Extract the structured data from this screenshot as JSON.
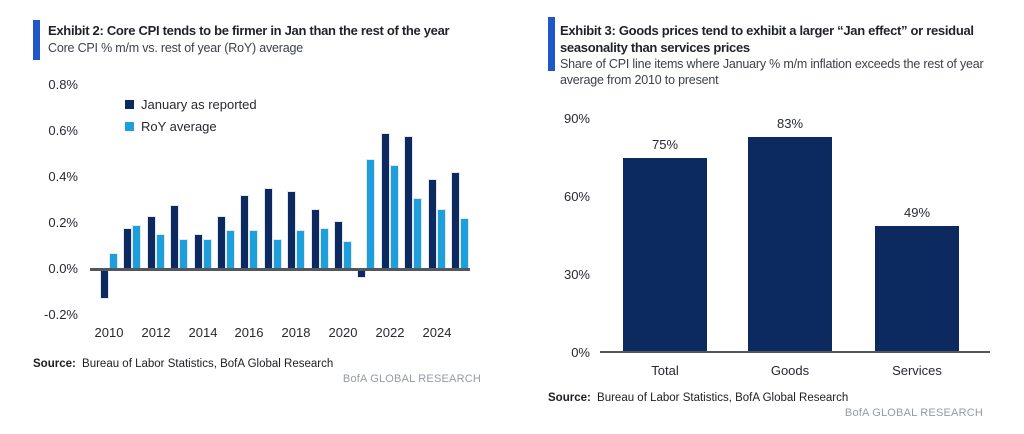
{
  "panels": {
    "left": {
      "title": "Exhibit 2: Core CPI tends to be firmer in Jan than the rest of the year",
      "subtitle": "Core CPI % m/m vs. rest of year (RoY) average",
      "source_label": "Source:",
      "source_text": "Bureau of Labor Statistics, BofA Global Research",
      "watermark": "BofA GLOBAL RESEARCH"
    },
    "right": {
      "title": "Exhibit 3: Goods prices tend to exhibit a larger “Jan effect” or residual seasonality than services prices",
      "subtitle": "Share of CPI line items where January % m/m inflation exceeds the rest of year average from 2010 to present",
      "source_label": "Source:",
      "source_text": "Bureau of Labor Statistics, BofA Global Research",
      "watermark": "BofA GLOBAL RESEARCH"
    }
  },
  "colors": {
    "navy": "#0d2a60",
    "light_blue": "#1d9fdb",
    "accent_bar": "#1f57c8",
    "axis_line": "#53565c",
    "watermark_gray": "#959ba3"
  },
  "chart_data": [
    {
      "type": "bar",
      "title": "Core CPI % m/m vs. rest of year (RoY) average",
      "categories": [
        "2010",
        "2011",
        "2012",
        "2013",
        "2014",
        "2015",
        "2016",
        "2017",
        "2018",
        "2019",
        "2020",
        "2021",
        "2022",
        "2023",
        "2024",
        "2025"
      ],
      "series": [
        {
          "name": "January as reported",
          "color_key": "navy",
          "values": [
            -0.13,
            0.18,
            0.23,
            0.28,
            0.15,
            0.23,
            0.32,
            0.35,
            0.34,
            0.26,
            0.21,
            -0.04,
            0.59,
            0.58,
            0.39,
            0.42
          ]
        },
        {
          "name": "RoY average",
          "color_key": "light_blue",
          "values": [
            0.07,
            0.19,
            0.15,
            0.13,
            0.13,
            0.17,
            0.17,
            0.13,
            0.17,
            0.18,
            0.12,
            0.48,
            0.45,
            0.31,
            0.26,
            0.22
          ]
        }
      ],
      "ylim": [
        -0.2,
        0.8
      ],
      "ytick_labels": [
        "0.8%",
        "0.6%",
        "0.4%",
        "0.2%",
        "0.0%",
        "-0.2%"
      ],
      "xtick_labels": [
        "2010",
        "2012",
        "2014",
        "2016",
        "2018",
        "2020",
        "2022",
        "2024"
      ],
      "grid": false,
      "legend_position": "upper-left-inside"
    },
    {
      "type": "bar",
      "title": "Share of CPI line items where January % m/m inflation exceeds the rest of year average from 2010 to present",
      "categories": [
        "Total",
        "Goods",
        "Services"
      ],
      "values": [
        75,
        83,
        49
      ],
      "data_labels": [
        "75%",
        "83%",
        "49%"
      ],
      "ylim": [
        0,
        90
      ],
      "ytick_labels": [
        "90%",
        "60%",
        "30%",
        "0%"
      ],
      "grid": false,
      "legend_position": "none"
    }
  ]
}
